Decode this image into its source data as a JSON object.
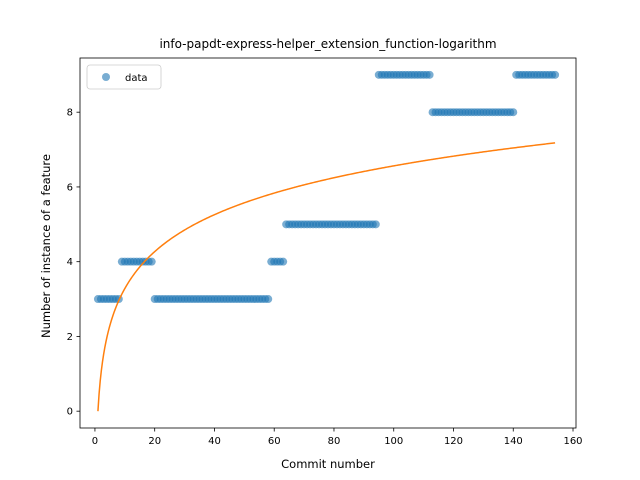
{
  "chart_data": {
    "type": "scatter",
    "title": "info-papdt-express-helper_extension_function-logarithm",
    "xlabel": "Commit number",
    "ylabel": "Number of instance of a feature",
    "xlim": [
      -5,
      161
    ],
    "ylim": [
      -0.45,
      9.45
    ],
    "xticks": [
      0,
      20,
      40,
      60,
      80,
      100,
      120,
      140,
      160
    ],
    "yticks": [
      0,
      2,
      4,
      6,
      8
    ],
    "grid": false,
    "legend": {
      "position": "top-left",
      "entries": [
        "data"
      ]
    },
    "colors": {
      "scatter": "#1f77b4",
      "fit": "#ff7f0e"
    },
    "series": [
      {
        "name": "data",
        "kind": "scatter",
        "segments": [
          {
            "x_start": 1,
            "x_end": 8,
            "y": 3
          },
          {
            "x_start": 9,
            "x_end": 19,
            "y": 4
          },
          {
            "x_start": 20,
            "x_end": 58,
            "y": 3
          },
          {
            "x_start": 59,
            "x_end": 63,
            "y": 4
          },
          {
            "x_start": 64,
            "x_end": 94,
            "y": 5
          },
          {
            "x_start": 95,
            "x_end": 112,
            "y": 9
          },
          {
            "x_start": 113,
            "x_end": 140,
            "y": 8
          },
          {
            "x_start": 141,
            "x_end": 154,
            "y": 9
          }
        ]
      },
      {
        "kind": "line",
        "model": "logarithmic fit y = a*ln(x) + b",
        "a": 1.4253,
        "b": 0,
        "x_start": 1,
        "x_end": 154
      }
    ]
  }
}
